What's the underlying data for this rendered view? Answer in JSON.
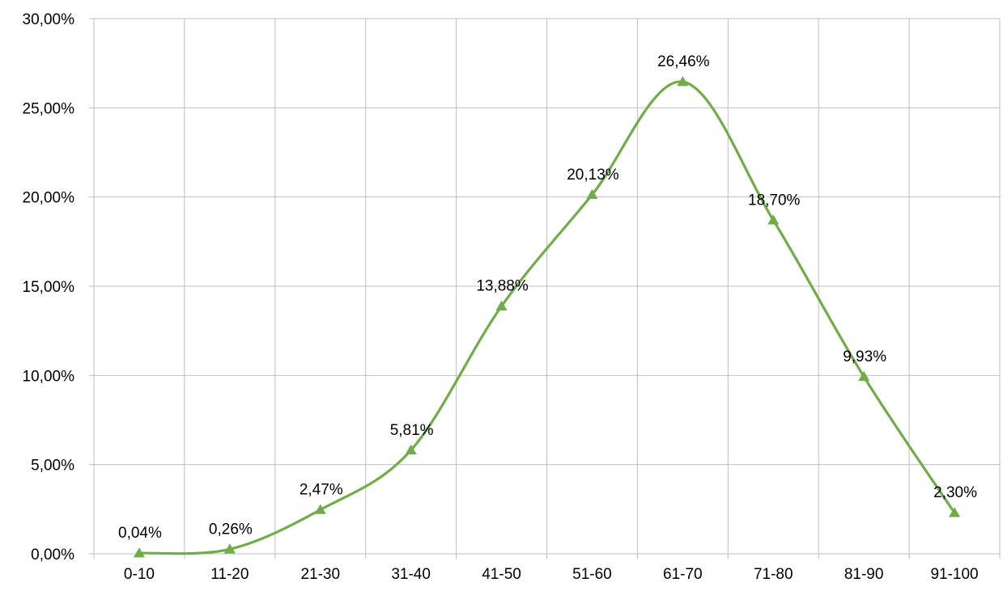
{
  "chart_data": {
    "type": "line",
    "title": "",
    "xlabel": "",
    "ylabel": "",
    "categories": [
      "0-10",
      "11-20",
      "21-30",
      "31-40",
      "41-50",
      "51-60",
      "61-70",
      "71-80",
      "81-90",
      "91-100"
    ],
    "series": [
      {
        "values": [
          0.04,
          0.26,
          2.47,
          5.81,
          13.88,
          20.13,
          26.46,
          18.7,
          9.93,
          2.3
        ],
        "labels": [
          "0,04%",
          "0,26%",
          "2,47%",
          "5,81%",
          "13,88%",
          "20,13%",
          "26,46%",
          "18,70%",
          "9,93%",
          "2,30%"
        ],
        "color": "#70ad47",
        "marker": "triangle",
        "smooth": true
      }
    ],
    "ylim": [
      0,
      30
    ],
    "yticks": [
      0,
      5,
      10,
      15,
      20,
      25,
      30
    ],
    "ytick_labels": [
      "0,00%",
      "5,00%",
      "10,00%",
      "15,00%",
      "20,00%",
      "25,00%",
      "30,00%"
    ],
    "grid": "both",
    "legend": "none"
  }
}
